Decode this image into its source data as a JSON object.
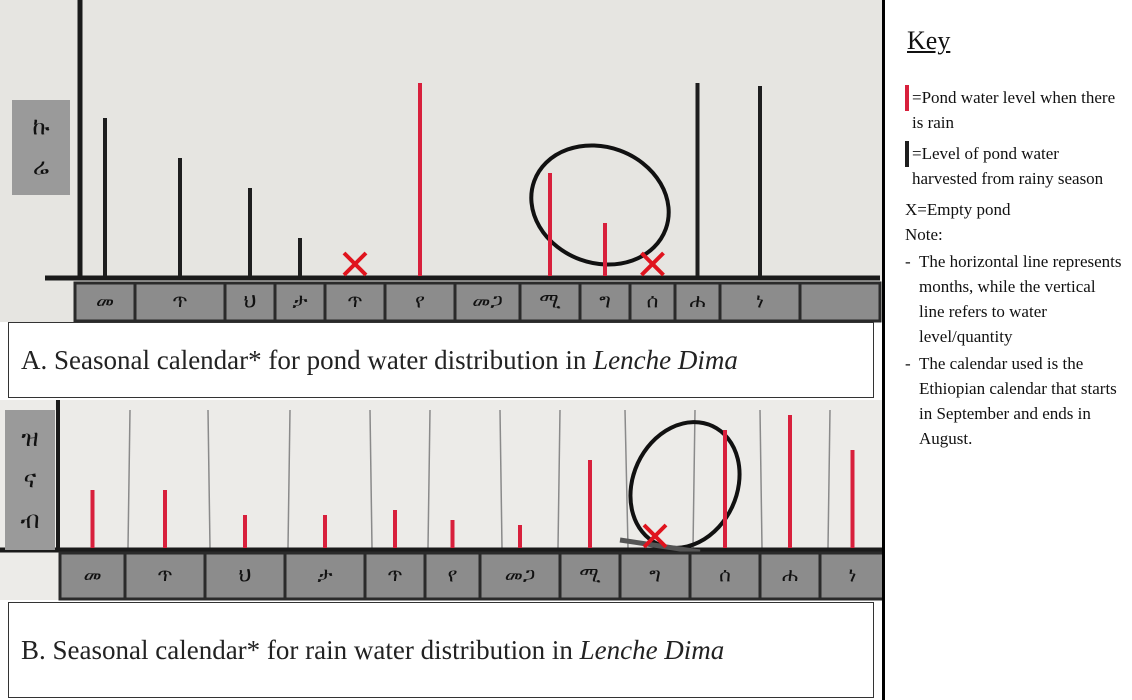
{
  "colors": {
    "rain": "#d8203c",
    "harvested": "#1e1e1e"
  },
  "panel_a": {
    "axis_label": [
      "ኩ",
      "ሬ"
    ],
    "months": [
      "መ",
      "ጥ",
      "ህ",
      "ታ",
      "ጥ",
      "የ",
      "መጋ",
      "ሚ",
      "ግ",
      "ሰ",
      "ሐ",
      "ነ"
    ],
    "rain": [
      null,
      null,
      null,
      null,
      null,
      193,
      null,
      103,
      53,
      null,
      null,
      null
    ],
    "harvested": [
      158,
      118,
      88,
      38,
      null,
      null,
      null,
      null,
      null,
      null,
      193,
      190
    ],
    "empty": [
      false,
      false,
      false,
      false,
      true,
      false,
      false,
      false,
      false,
      true,
      false,
      false
    ],
    "caption": {
      "text": "A. Seasonal calendar* for pond water distribution in",
      "place": "Lenche Dima"
    }
  },
  "panel_b": {
    "axis_label": [
      "ዝ",
      "ና",
      "ብ"
    ],
    "months": [
      "መ",
      "ጥ",
      "ህ",
      "ታ",
      "ጥ",
      "የ",
      "መጋ",
      "ሚ",
      "ግ",
      "ሰ",
      "ሐ",
      "ነ"
    ],
    "rain": [
      58,
      58,
      33,
      33,
      38,
      28,
      23,
      88,
      null,
      118,
      133,
      98
    ],
    "empty": [
      false,
      false,
      false,
      false,
      false,
      false,
      false,
      false,
      true,
      false,
      false,
      false
    ],
    "caption": {
      "text": "B. Seasonal calendar* for rain water distribution in",
      "place": "Lenche Dima"
    }
  },
  "key": {
    "title": "Key",
    "rain": "=Pond water level when there is rain",
    "harvested": "=Level of pond water harvested from rainy season",
    "empty": "X=Empty pond",
    "note_title": "Note:",
    "notes": [
      "The horizontal line represents months, while the vertical line refers to water level/quantity",
      "The calendar used is the Ethiopian calendar that starts in September and ends in August."
    ]
  }
}
